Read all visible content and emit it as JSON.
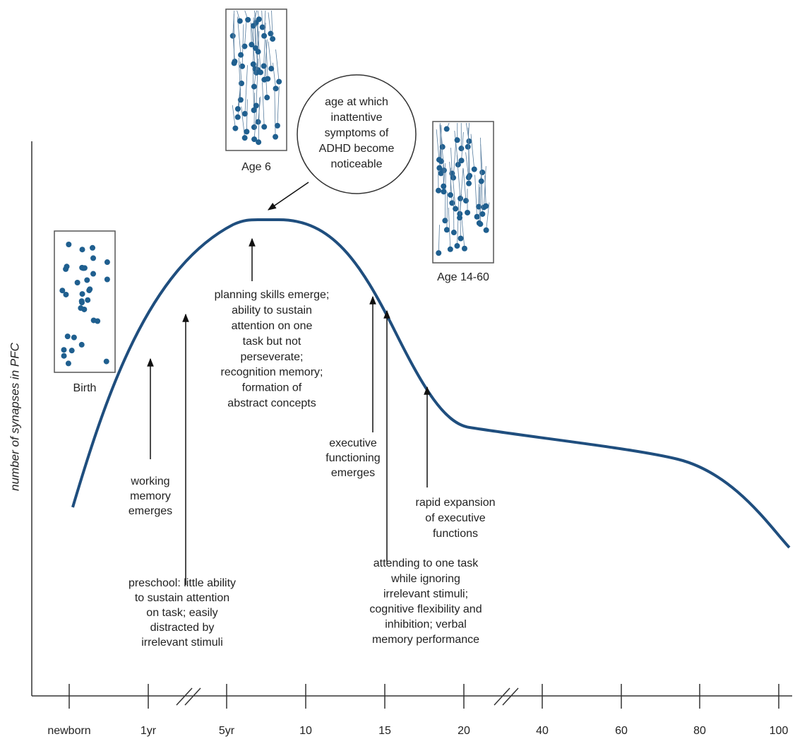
{
  "y_axis_label": "number of synapses in PFC",
  "x_ticks": [
    "newborn",
    "1yr",
    "5yr",
    "10",
    "15",
    "20",
    "40",
    "60",
    "80",
    "100"
  ],
  "panels": [
    {
      "label": "Birth"
    },
    {
      "label": "Age 6"
    },
    {
      "label": "Age 14-60"
    }
  ],
  "callout": [
    "age at which",
    "inattentive",
    "symptoms of",
    "ADHD become",
    "noticeable"
  ],
  "annotations": [
    {
      "lines": [
        "working",
        "memory",
        "emerges"
      ]
    },
    {
      "lines": [
        "preschool: little ability",
        "to sustain attention",
        "on  task; easily",
        "distracted by",
        "irrelevant stimuli"
      ]
    },
    {
      "lines": [
        "planning skills emerge;",
        "ability to sustain",
        "attention on one",
        "task but not",
        "perseverate;",
        "recognition memory;",
        "formation of",
        "abstract concepts"
      ]
    },
    {
      "lines": [
        "executive",
        "functioning",
        "emerges"
      ]
    },
    {
      "lines": [
        "rapid expansion",
        "of executive",
        "functions"
      ]
    },
    {
      "lines": [
        "attending to one task",
        "while ignoring",
        "irrelevant stimuli;",
        "cognitive flexibility and",
        "inhibition; verbal",
        "memory performance"
      ]
    }
  ]
}
